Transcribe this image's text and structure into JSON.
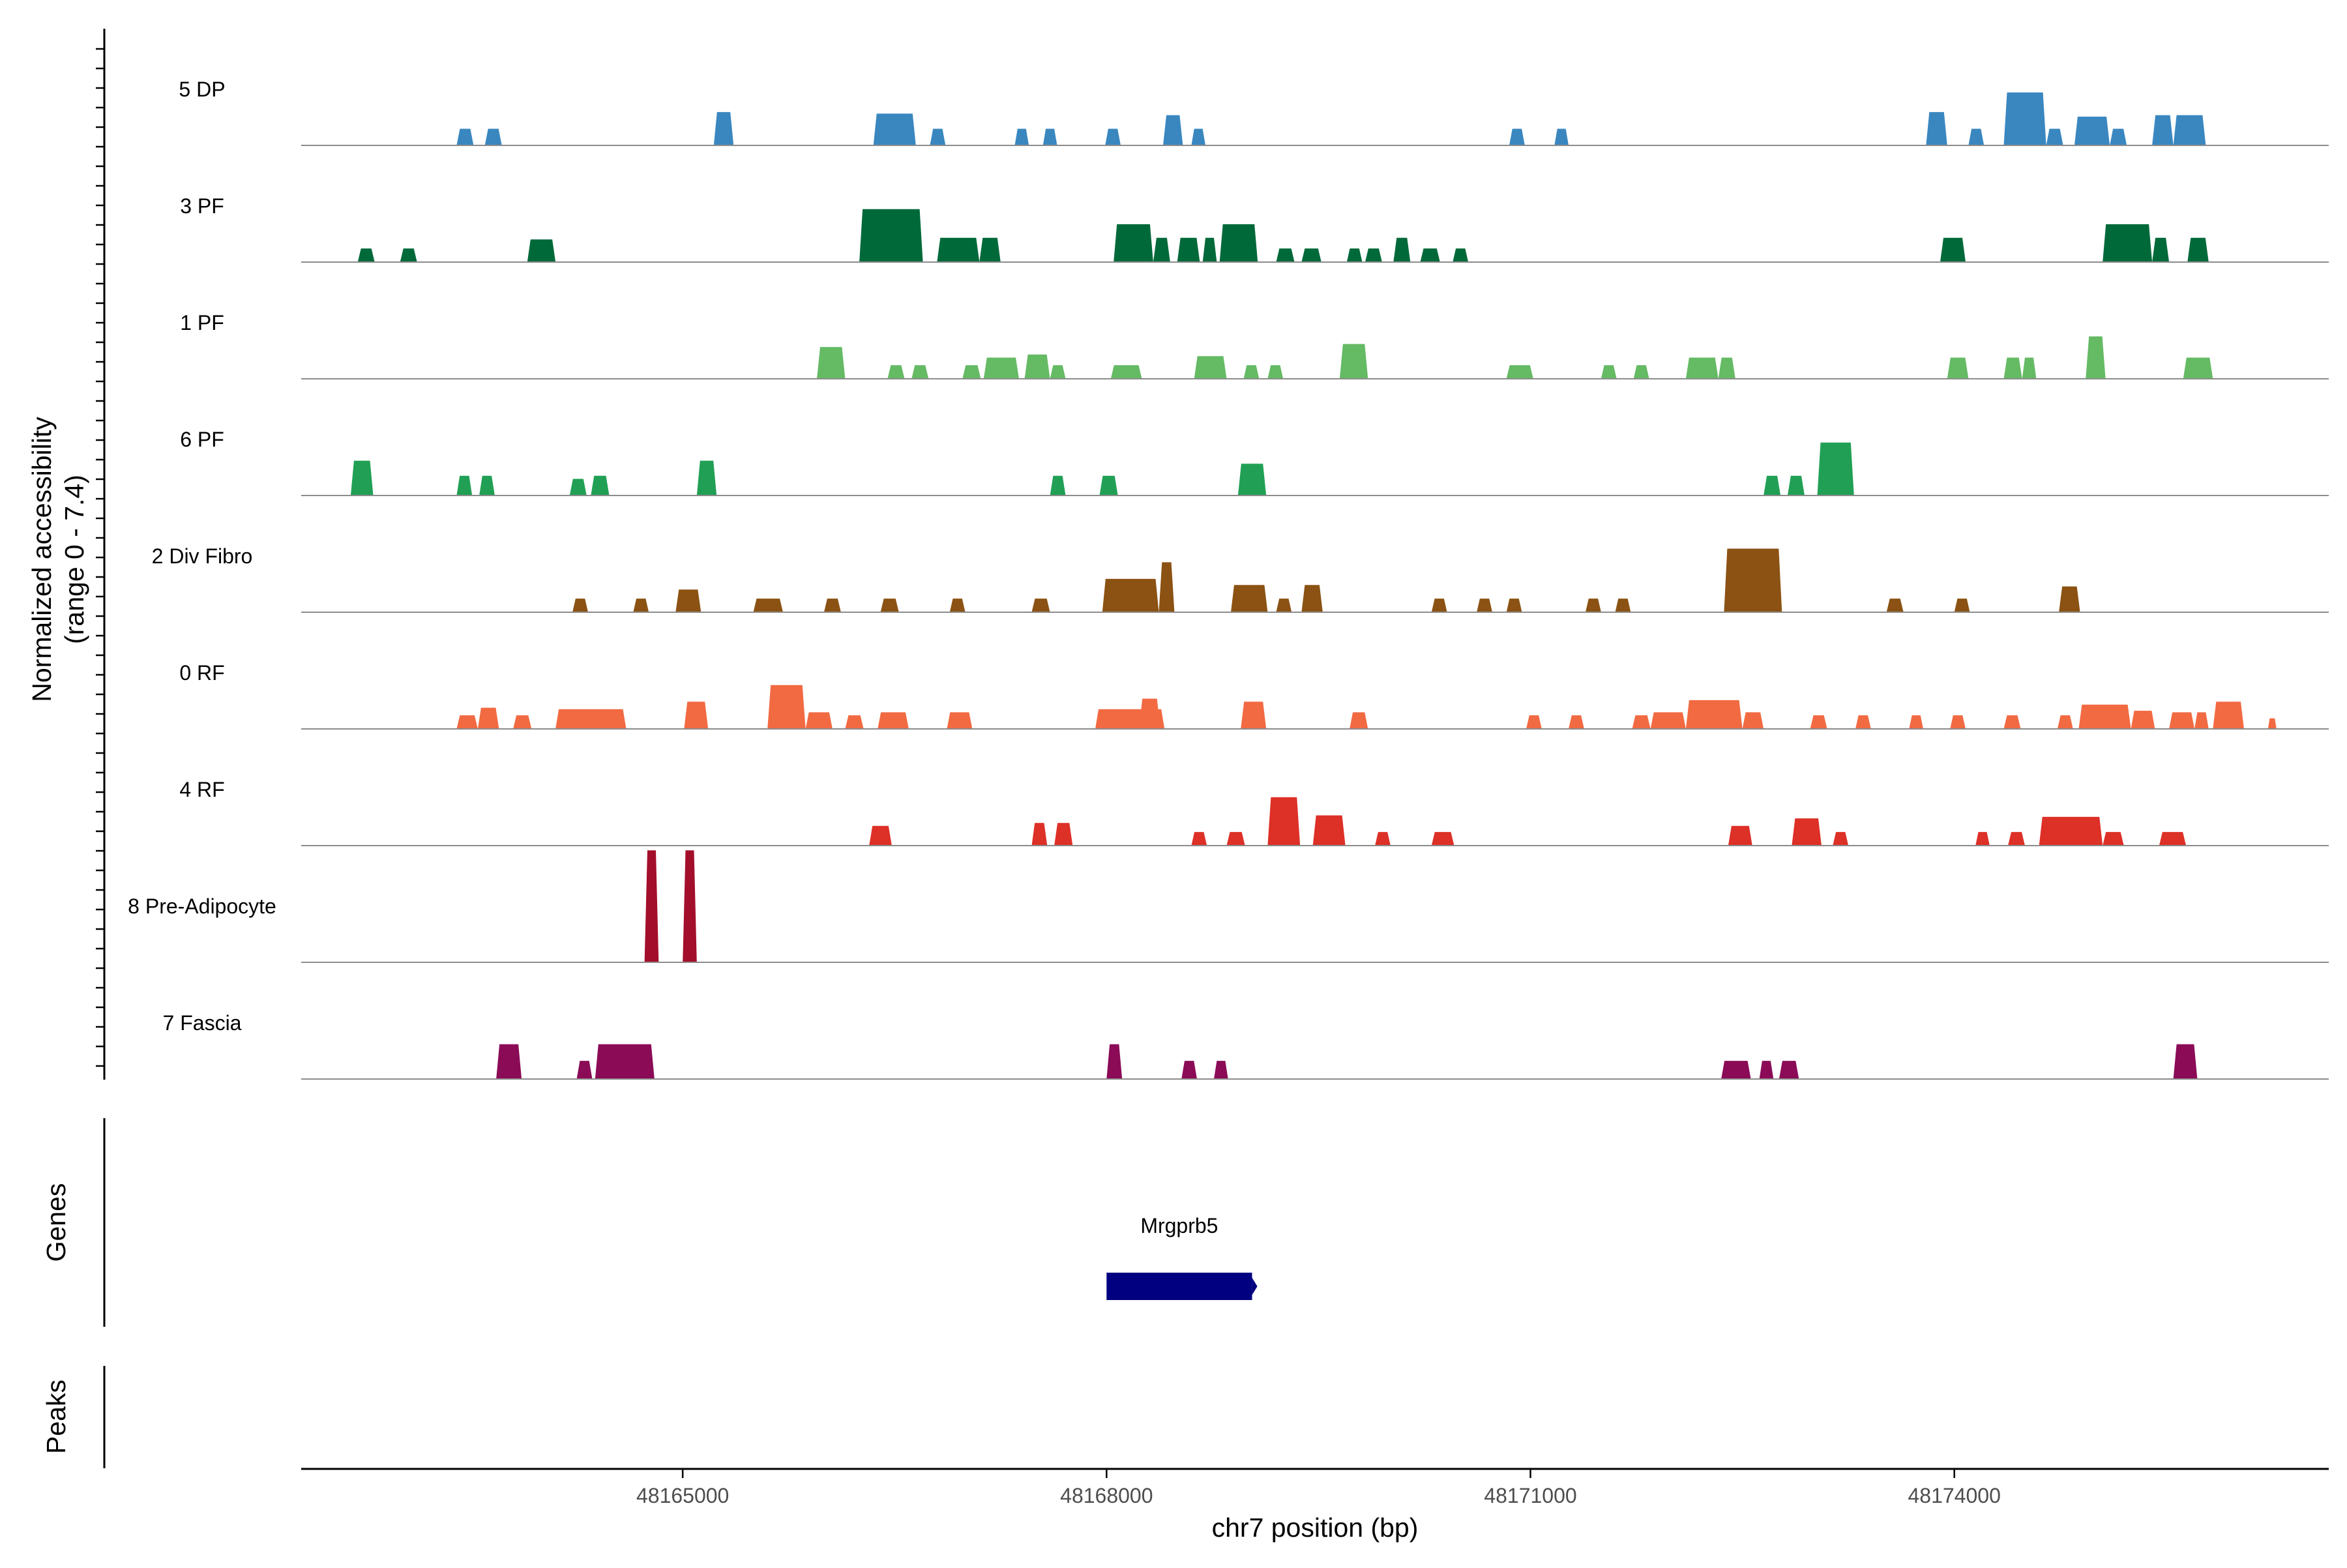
{
  "chart_data": {
    "type": "area",
    "title": "",
    "ylabel_line1": "Normalized accessibility",
    "ylabel_line2": "(range 0 - 7.4)",
    "xlabel": "chr7 position (bp)",
    "xlim": [
      48162300,
      48176650
    ],
    "ylim": [
      0,
      7.4
    ],
    "x_ticks": [
      48165000,
      48168000,
      48171000,
      48174000
    ],
    "x_tick_labels": [
      "48165000",
      "48168000",
      "48171000",
      "48174000"
    ],
    "genes_label": "Genes",
    "peaks_label": "Peaks",
    "gene": {
      "name": "Mrgprb5",
      "start": 48168000,
      "end": 48169030,
      "color": "#000080"
    },
    "tracks": [
      {
        "name": "5 DP",
        "color": "#3A87C0",
        "peaks": [
          [
            48163400,
            48163520,
            1.1
          ],
          [
            48163600,
            48163720,
            1.1
          ],
          [
            48165220,
            48165360,
            2.2
          ],
          [
            48166350,
            48166650,
            2.1
          ],
          [
            48166750,
            48166860,
            1.1
          ],
          [
            48167350,
            48167450,
            1.1
          ],
          [
            48167550,
            48167650,
            1.1
          ],
          [
            48167990,
            48168100,
            1.1
          ],
          [
            48168400,
            48168540,
            2.0
          ],
          [
            48168600,
            48168700,
            1.1
          ],
          [
            48170850,
            48170960,
            1.1
          ],
          [
            48171170,
            48171270,
            1.1
          ],
          [
            48173800,
            48173950,
            2.2
          ],
          [
            48174100,
            48174210,
            1.1
          ],
          [
            48174350,
            48174650,
            3.5
          ],
          [
            48174650,
            48174770,
            1.1
          ],
          [
            48174850,
            48175100,
            1.9
          ],
          [
            48175100,
            48175220,
            1.1
          ],
          [
            48175400,
            48175550,
            2.0
          ],
          [
            48175550,
            48175780,
            2.0
          ]
        ]
      },
      {
        "name": "3 PF",
        "color": "#00693A",
        "peaks": [
          [
            48162700,
            48162820,
            0.9
          ],
          [
            48163000,
            48163120,
            0.9
          ],
          [
            48163900,
            48164100,
            1.5
          ],
          [
            48166250,
            48166700,
            3.5
          ],
          [
            48166800,
            48167100,
            1.6
          ],
          [
            48167100,
            48167250,
            1.6
          ],
          [
            48168050,
            48168330,
            2.5
          ],
          [
            48168330,
            48168450,
            1.6
          ],
          [
            48168500,
            48168660,
            1.6
          ],
          [
            48168680,
            48168780,
            1.6
          ],
          [
            48168800,
            48169070,
            2.5
          ],
          [
            48169200,
            48169330,
            0.9
          ],
          [
            48169380,
            48169520,
            0.9
          ],
          [
            48169700,
            48169810,
            0.9
          ],
          [
            48169830,
            48169950,
            0.9
          ],
          [
            48170030,
            48170150,
            1.6
          ],
          [
            48170220,
            48170360,
            0.9
          ],
          [
            48170450,
            48170560,
            0.9
          ],
          [
            48173900,
            48174080,
            1.6
          ],
          [
            48175050,
            48175400,
            2.5
          ],
          [
            48175400,
            48175520,
            1.6
          ],
          [
            48175650,
            48175800,
            1.6
          ]
        ]
      },
      {
        "name": "1 PF",
        "color": "#65BA64",
        "peaks": [
          [
            48165950,
            48166150,
            2.1
          ],
          [
            48166450,
            48166570,
            0.9
          ],
          [
            48166620,
            48166740,
            0.9
          ],
          [
            48166980,
            48167110,
            0.9
          ],
          [
            48167130,
            48167380,
            1.4
          ],
          [
            48167420,
            48167600,
            1.6
          ],
          [
            48167600,
            48167710,
            0.9
          ],
          [
            48168030,
            48168250,
            0.9
          ],
          [
            48168620,
            48168850,
            1.5
          ],
          [
            48168970,
            48169080,
            0.9
          ],
          [
            48169140,
            48169250,
            0.9
          ],
          [
            48169650,
            48169850,
            2.3
          ],
          [
            48170830,
            48171020,
            0.9
          ],
          [
            48171500,
            48171610,
            0.9
          ],
          [
            48171730,
            48171840,
            0.9
          ],
          [
            48172100,
            48172330,
            1.4
          ],
          [
            48172330,
            48172450,
            1.4
          ],
          [
            48173950,
            48174100,
            1.4
          ],
          [
            48174350,
            48174480,
            1.4
          ],
          [
            48174480,
            48174580,
            1.4
          ],
          [
            48174930,
            48175070,
            2.8
          ],
          [
            48175620,
            48175830,
            1.4
          ]
        ]
      },
      {
        "name": "6 PF",
        "color": "#21A055",
        "peaks": [
          [
            48162650,
            48162810,
            2.3
          ],
          [
            48163400,
            48163510,
            1.3
          ],
          [
            48163560,
            48163670,
            1.3
          ],
          [
            48164200,
            48164320,
            1.1
          ],
          [
            48164350,
            48164480,
            1.3
          ],
          [
            48165100,
            48165240,
            2.3
          ],
          [
            48167600,
            48167710,
            1.3
          ],
          [
            48167950,
            48168080,
            1.3
          ],
          [
            48168930,
            48169130,
            2.1
          ],
          [
            48172650,
            48172770,
            1.3
          ],
          [
            48172820,
            48172940,
            1.3
          ],
          [
            48173030,
            48173290,
            3.5
          ]
        ]
      },
      {
        "name": "2 Div Fibro",
        "color": "#8B5213",
        "peaks": [
          [
            48164220,
            48164330,
            0.9
          ],
          [
            48164650,
            48164760,
            0.9
          ],
          [
            48164950,
            48165130,
            1.5
          ],
          [
            48165500,
            48165710,
            0.9
          ],
          [
            48166000,
            48166120,
            0.9
          ],
          [
            48166400,
            48166530,
            0.9
          ],
          [
            48166890,
            48167000,
            0.9
          ],
          [
            48167470,
            48167600,
            0.9
          ],
          [
            48167970,
            48168370,
            2.2
          ],
          [
            48168370,
            48168480,
            3.3
          ],
          [
            48168880,
            48169140,
            1.8
          ],
          [
            48169200,
            48169310,
            0.9
          ],
          [
            48169380,
            48169530,
            1.8
          ],
          [
            48170300,
            48170410,
            0.9
          ],
          [
            48170620,
            48170730,
            0.9
          ],
          [
            48170830,
            48170940,
            0.9
          ],
          [
            48171390,
            48171500,
            0.9
          ],
          [
            48171600,
            48171710,
            0.9
          ],
          [
            48172370,
            48172780,
            4.2
          ],
          [
            48173520,
            48173640,
            0.9
          ],
          [
            48174000,
            48174110,
            0.9
          ],
          [
            48174740,
            48174890,
            1.7
          ]
        ]
      },
      {
        "name": "0 RF",
        "color": "#F26A42",
        "peaks": [
          [
            48163400,
            48163550,
            0.9
          ],
          [
            48163550,
            48163700,
            1.4
          ],
          [
            48163800,
            48163930,
            0.9
          ],
          [
            48164100,
            48164600,
            1.3
          ],
          [
            48165010,
            48165180,
            1.8
          ],
          [
            48165600,
            48165870,
            2.9
          ],
          [
            48165870,
            48166060,
            1.1
          ],
          [
            48166150,
            48166280,
            0.9
          ],
          [
            48166380,
            48166600,
            1.1
          ],
          [
            48166870,
            48167050,
            1.1
          ],
          [
            48167920,
            48168410,
            1.3
          ],
          [
            48168230,
            48168380,
            2.0
          ],
          [
            48168950,
            48169130,
            1.8
          ],
          [
            48169720,
            48169850,
            1.1
          ],
          [
            48170970,
            48171080,
            0.9
          ],
          [
            48171270,
            48171380,
            0.9
          ],
          [
            48171720,
            48171850,
            0.9
          ],
          [
            48171850,
            48172100,
            1.1
          ],
          [
            48172100,
            48172500,
            1.9
          ],
          [
            48172500,
            48172650,
            1.1
          ],
          [
            48172980,
            48173100,
            0.9
          ],
          [
            48173300,
            48173410,
            0.9
          ],
          [
            48173680,
            48173780,
            0.9
          ],
          [
            48173970,
            48174080,
            0.9
          ],
          [
            48174350,
            48174470,
            0.9
          ],
          [
            48174730,
            48174840,
            0.9
          ],
          [
            48174880,
            48175250,
            1.6
          ],
          [
            48175250,
            48175420,
            1.2
          ],
          [
            48175520,
            48175700,
            1.1
          ],
          [
            48175700,
            48175800,
            1.1
          ],
          [
            48175830,
            48176050,
            1.8
          ],
          [
            48176220,
            48176280,
            0.7
          ]
        ]
      },
      {
        "name": "4 RF",
        "color": "#DD3027",
        "peaks": [
          [
            48166320,
            48166480,
            1.3
          ],
          [
            48167470,
            48167580,
            1.5
          ],
          [
            48167630,
            48167760,
            1.5
          ],
          [
            48168600,
            48168710,
            0.9
          ],
          [
            48168850,
            48168980,
            0.9
          ],
          [
            48169140,
            48169370,
            3.2
          ],
          [
            48169460,
            48169690,
            2.0
          ],
          [
            48169900,
            48170010,
            0.9
          ],
          [
            48170300,
            48170460,
            0.9
          ],
          [
            48172400,
            48172570,
            1.3
          ],
          [
            48172850,
            48173060,
            1.8
          ],
          [
            48173140,
            48173250,
            0.9
          ],
          [
            48174150,
            48174250,
            0.9
          ],
          [
            48174380,
            48174500,
            0.9
          ],
          [
            48174600,
            48175050,
            1.9
          ],
          [
            48175050,
            48175200,
            0.9
          ],
          [
            48175450,
            48175640,
            0.9
          ]
        ]
      },
      {
        "name": "8 Pre-Adipocyte",
        "color": "#A30F2B",
        "peaks": [
          [
            48164730,
            48164830,
            7.4
          ],
          [
            48165000,
            48165100,
            7.4
          ]
        ]
      },
      {
        "name": "7 Fascia",
        "color": "#8B0B57",
        "peaks": [
          [
            48163680,
            48163860,
            2.3
          ],
          [
            48164250,
            48164360,
            1.2
          ],
          [
            48164380,
            48164800,
            2.3
          ],
          [
            48168000,
            48168110,
            2.3
          ],
          [
            48168530,
            48168640,
            1.2
          ],
          [
            48168760,
            48168860,
            1.2
          ],
          [
            48172350,
            48172560,
            1.2
          ],
          [
            48172620,
            48172720,
            1.2
          ],
          [
            48172760,
            48172900,
            1.2
          ],
          [
            48175550,
            48175720,
            2.3
          ]
        ]
      }
    ]
  }
}
